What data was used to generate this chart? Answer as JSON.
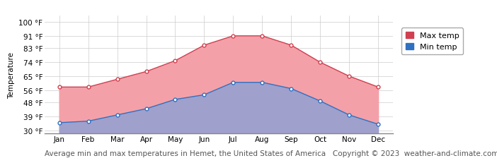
{
  "months": [
    "Jan",
    "Feb",
    "Mar",
    "Apr",
    "May",
    "Jun",
    "Jul",
    "Aug",
    "Sep",
    "Oct",
    "Nov",
    "Dec"
  ],
  "max_temp": [
    58,
    58,
    63,
    68,
    75,
    85,
    91,
    91,
    85,
    74,
    65,
    58
  ],
  "min_temp": [
    35,
    36,
    40,
    44,
    50,
    53,
    61,
    61,
    57,
    49,
    40,
    34
  ],
  "yticks": [
    30,
    39,
    48,
    56,
    65,
    74,
    83,
    91,
    100
  ],
  "ytick_labels": [
    "30 °F",
    "39 °F",
    "48 °F",
    "56 °F",
    "65 °F",
    "74 °F",
    "83 °F",
    "91 °F",
    "100 °F"
  ],
  "ylim": [
    28,
    104
  ],
  "max_fill_color": "#f4a0a8",
  "min_fill_color": "#a0a0cc",
  "max_line_color": "#d04050",
  "min_line_color": "#3070c0",
  "legend_max_color": "#d04050",
  "legend_min_color": "#3070c0",
  "title": "Average min and max temperatures in Hemet, the United States of America",
  "copyright": "Copyright © 2023  weather-and-climate.com",
  "ylabel": "Temperature",
  "bg_color": "#ffffff",
  "plot_bg_color": "#ffffff",
  "grid_color": "#cccccc",
  "title_fontsize": 7.5,
  "axis_fontsize": 7.5,
  "legend_fontsize": 8,
  "ylabel_fontsize": 7.5
}
